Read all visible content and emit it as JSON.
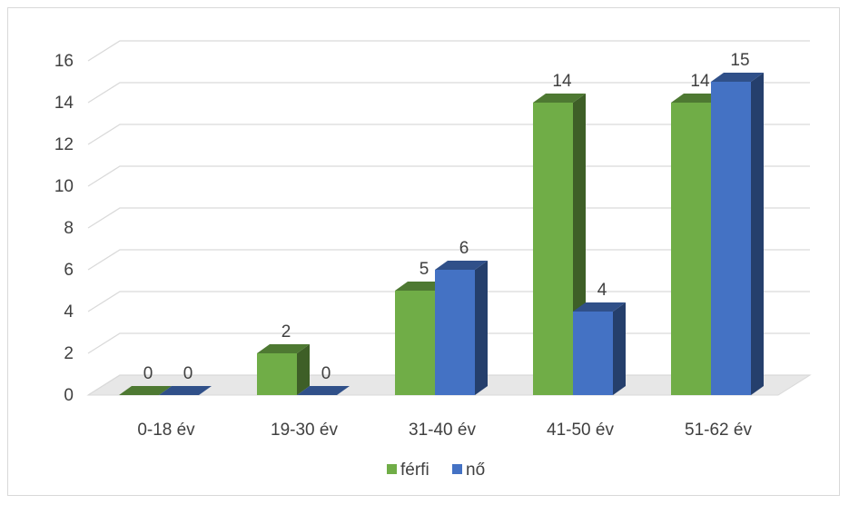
{
  "chart_data": {
    "type": "bar",
    "style": "3d-clustered-column",
    "categories": [
      "0-18 év",
      "19-30 év",
      "31-40 év",
      "41-50 év",
      "51-62 év"
    ],
    "series": [
      {
        "name": "férfi",
        "color": "#70ad47",
        "values": [
          0,
          2,
          5,
          14,
          14
        ]
      },
      {
        "name": "nő",
        "color": "#4472c4",
        "values": [
          0,
          0,
          6,
          4,
          15
        ]
      }
    ],
    "ylim": [
      0,
      16
    ],
    "yticks": [
      "0",
      "2",
      "4",
      "6",
      "8",
      "10",
      "12",
      "14",
      "16"
    ],
    "data_labels": [
      [
        "0",
        "2",
        "5",
        "14",
        "14"
      ],
      [
        "0",
        "0",
        "6",
        "4",
        "15"
      ]
    ],
    "grid": true,
    "legend": "bottom",
    "title": "",
    "xlabel": "",
    "ylabel": ""
  }
}
